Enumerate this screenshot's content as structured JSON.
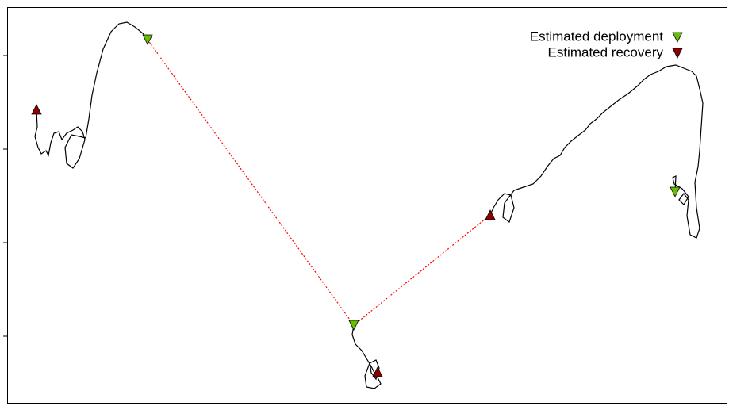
{
  "legend": [
    {
      "label": "Estimated deployment",
      "color": "#66c000"
    },
    {
      "label": "Estimated recovery",
      "color": "#8b0000"
    }
  ]
}
